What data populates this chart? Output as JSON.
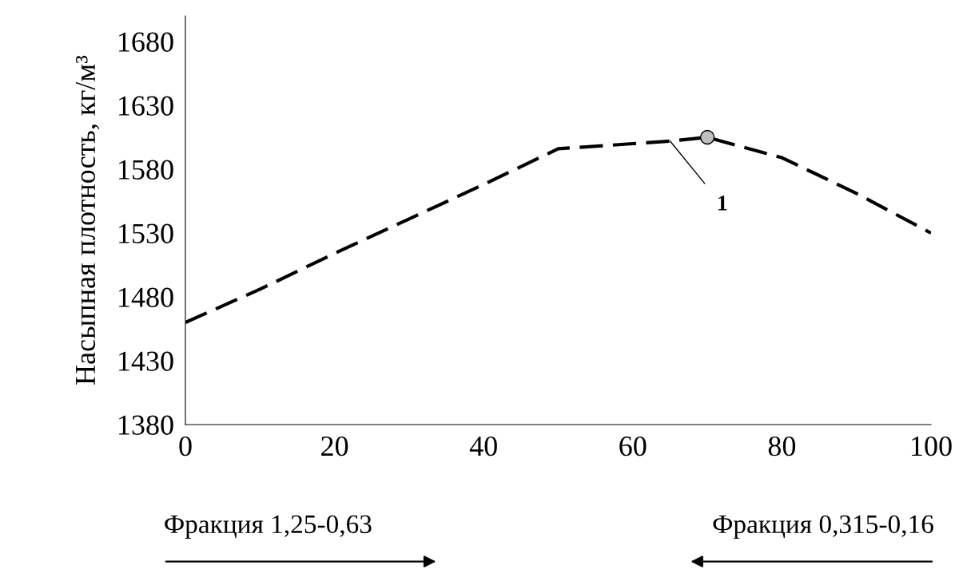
{
  "chart_data": {
    "type": "line",
    "ylabel": "Насыпная плотность, кг/м³",
    "xlim": [
      0,
      100
    ],
    "xticks": [
      0,
      20,
      40,
      60,
      80,
      100
    ],
    "ylim": [
      1380,
      1700
    ],
    "yticks": [
      1380,
      1430,
      1480,
      1530,
      1580,
      1630,
      1680
    ],
    "grid": false,
    "legend": false,
    "series": [
      {
        "color": "#000000",
        "line_style": "dashed",
        "marker": "none",
        "x": [
          0,
          10,
          20,
          30,
          40,
          50,
          60,
          65,
          70,
          80,
          90,
          100
        ],
        "values": [
          1460,
          1486,
          1514,
          1541,
          1568,
          1596,
          1600,
          1602,
          1605,
          1589,
          1561,
          1530
        ]
      },
      {
        "type": "scatter",
        "color": "#bfbfbf",
        "marker": "circle",
        "x": [
          70
        ],
        "values": [
          1605
        ]
      }
    ],
    "annotations": [
      {
        "text": "1",
        "x": 65,
        "y": 1602
      },
      "Фракция 1,25-0,63",
      "Фракция 0,315-0,16"
    ]
  }
}
